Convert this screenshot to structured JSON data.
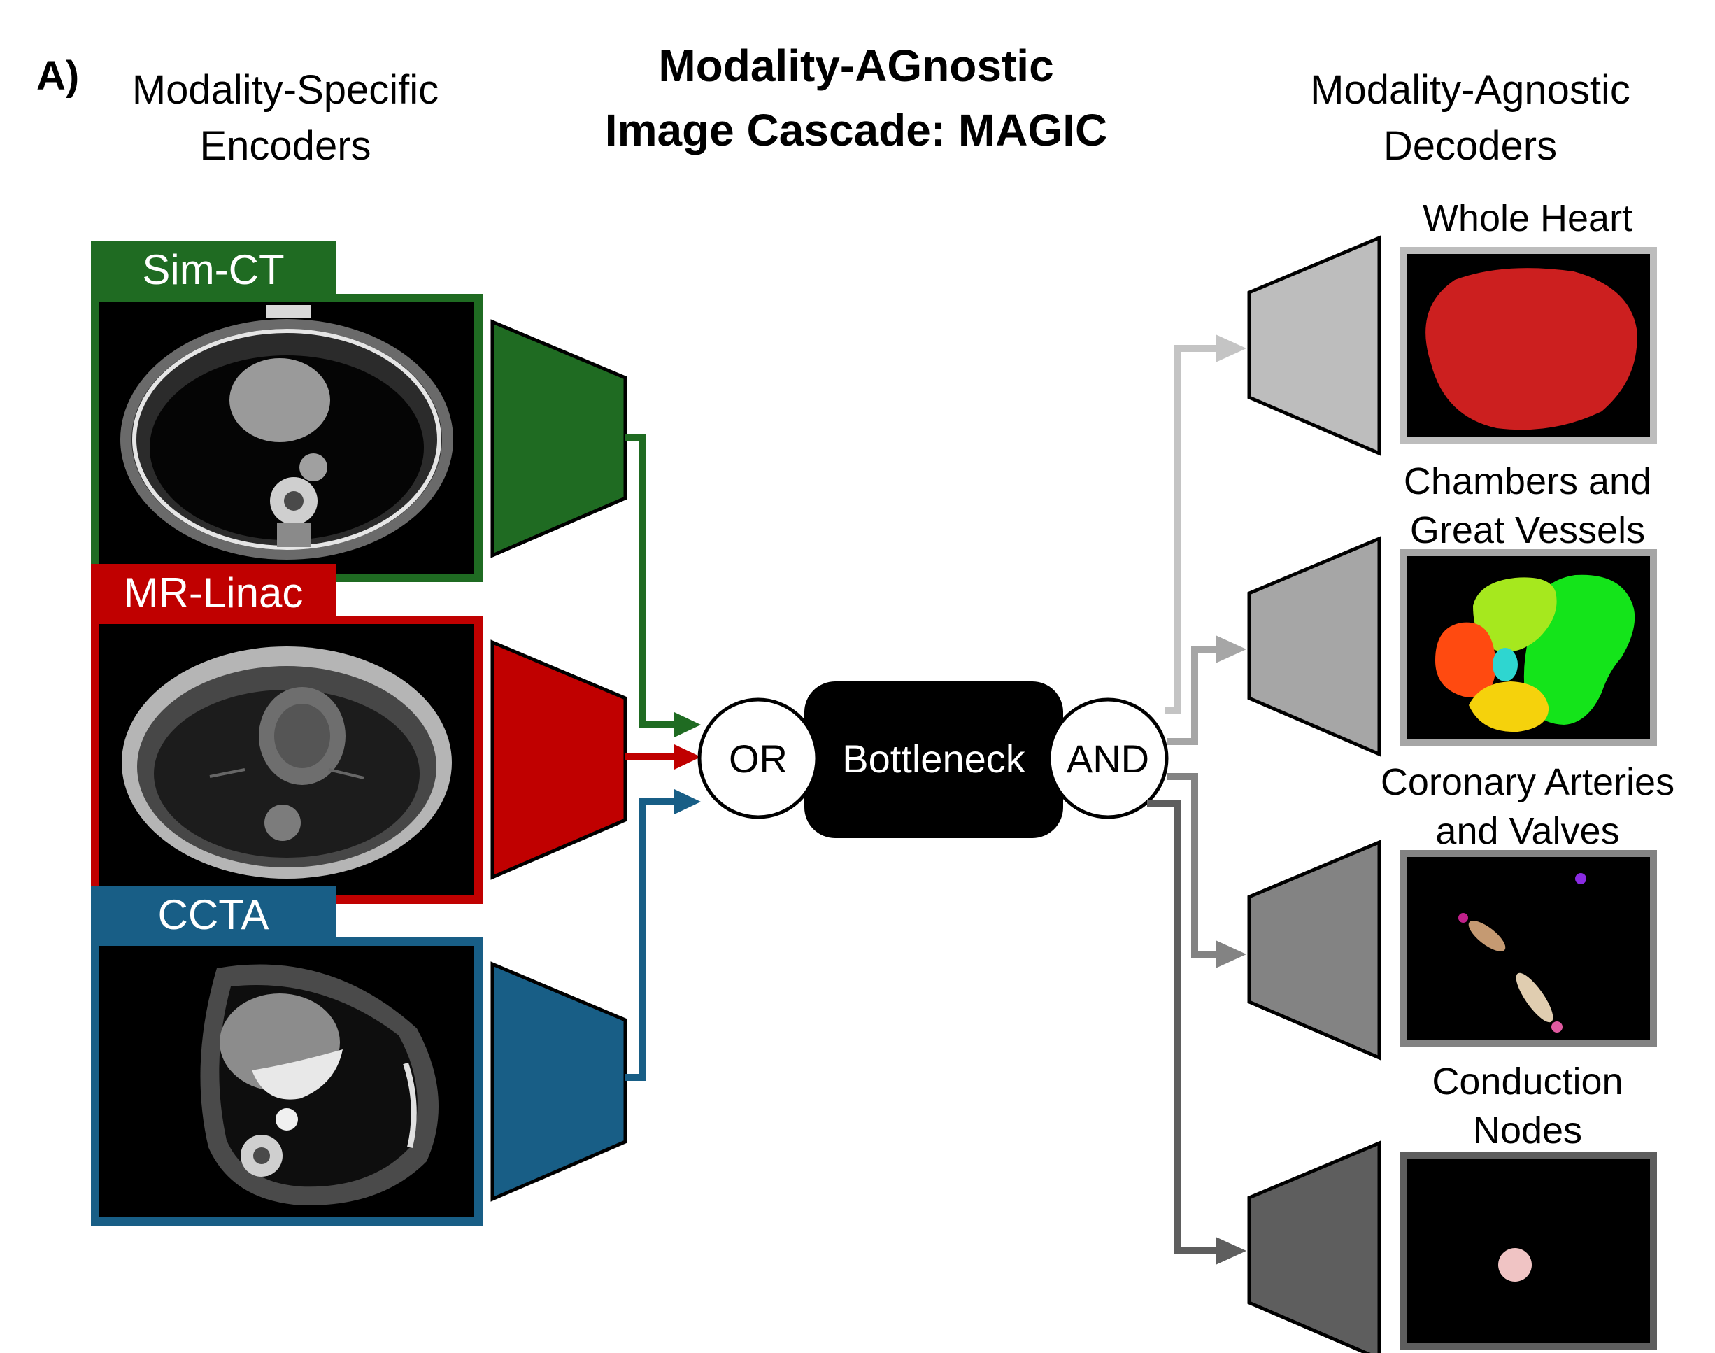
{
  "panel_label": "A)",
  "title": {
    "line1": "Modality-AGnostic",
    "line2": "Image Cascade: MAGIC"
  },
  "encoders_heading": {
    "line1": "Modality-Specific",
    "line2": "Encoders"
  },
  "decoders_heading": {
    "line1": "Modality-Agnostic",
    "line2": "Decoders"
  },
  "modalities": [
    {
      "label": "Sim-CT",
      "color": "#1f6b22"
    },
    {
      "label": "MR-Linac",
      "color": "#c00000"
    },
    {
      "label": "CCTA",
      "color": "#185e86"
    }
  ],
  "or_node": "OR",
  "bottleneck": "Bottleneck",
  "and_node": "AND",
  "decoders": [
    {
      "line1": "Whole Heart",
      "line2": "",
      "color": "#bdbdbd"
    },
    {
      "line1": "Chambers and",
      "line2": "Great Vessels",
      "color": "#a6a6a6"
    },
    {
      "line1": "Coronary Arteries",
      "line2": "and Valves",
      "color": "#838383"
    },
    {
      "line1": "Conduction",
      "line2": "Nodes",
      "color": "#5e5e5e"
    }
  ]
}
